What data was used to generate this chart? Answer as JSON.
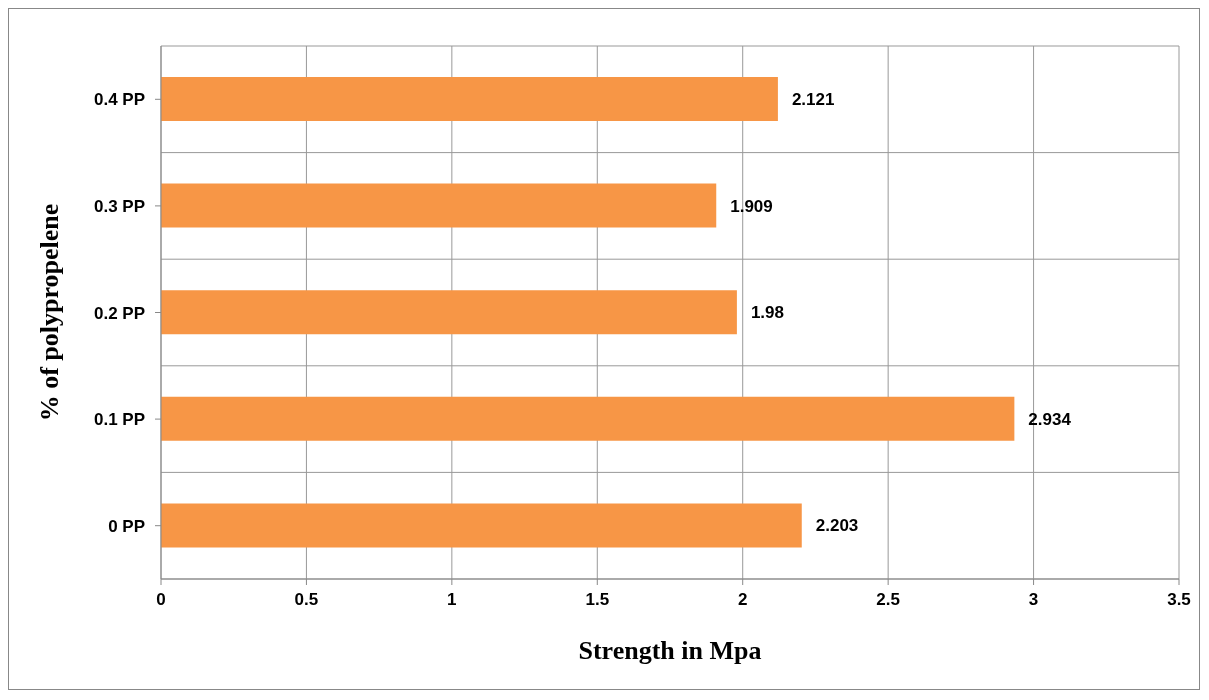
{
  "chart_data": {
    "type": "bar",
    "orientation": "horizontal",
    "xlabel": "Strength in Mpa",
    "ylabel": "% of polypropelene",
    "categories": [
      "0.4 PP",
      "0.3 PP",
      "0.2 PP",
      "0.1 PP",
      "0 PP"
    ],
    "values": [
      2.121,
      1.909,
      1.98,
      2.934,
      2.203
    ],
    "color": "#f79646",
    "xlim": [
      0,
      3.5
    ],
    "xticks": [
      0,
      0.5,
      1,
      1.5,
      2,
      2.5,
      3,
      3.5
    ],
    "grid": true,
    "data_labels": true
  }
}
